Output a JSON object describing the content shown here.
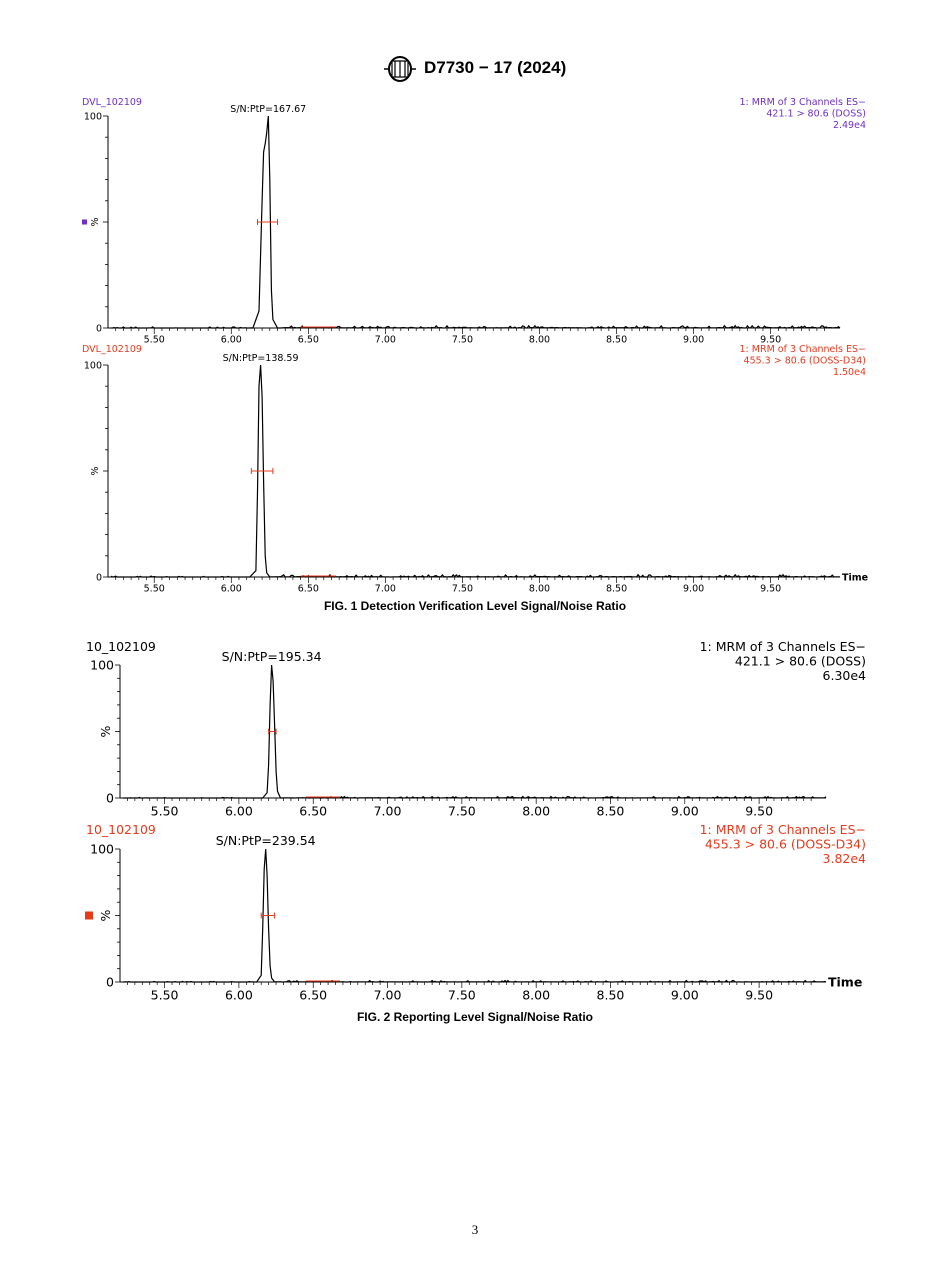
{
  "header": {
    "logo": "ASTM",
    "designation": "D7730 − 17 (2024)"
  },
  "colors": {
    "purple": "#7030c8",
    "red": "#e8391d",
    "black": "#000000"
  },
  "figures": [
    {
      "caption": "FIG. 1 Detection Verification Level Signal/Noise Ratio"
    },
    {
      "caption": "FIG. 2 Reporting Level Signal/Noise Ratio"
    }
  ],
  "page_number": "3",
  "chart_data": [
    {
      "type": "line",
      "sample": "DVL_102109",
      "channel": [
        "1: MRM of 3 Channels ES−",
        "421.1 > 80.6 (DOSS)",
        "2.49e4"
      ],
      "channel_color": "#7030c8",
      "annotation": "S/N:PtP=167.67",
      "ylabel": "%",
      "yticks": [
        "100",
        "0"
      ],
      "xlabel": "",
      "xticks": [
        "5.50",
        "6.00",
        "6.50",
        "7.00",
        "7.50",
        "8.00",
        "8.50",
        "9.00",
        "9.50"
      ],
      "xlim": [
        5.2,
        9.95
      ],
      "ylim": [
        0,
        100
      ],
      "marker_color": "#7030c8",
      "peak": {
        "x": [
          6.14,
          6.18,
          6.2,
          6.21,
          6.22,
          6.23,
          6.24,
          6.25,
          6.26,
          6.27,
          6.3
        ],
        "y": [
          0,
          8,
          60,
          83,
          87,
          92,
          100,
          70,
          18,
          4,
          0
        ]
      },
      "noise_bar": [
        6.17,
        6.3
      ]
    },
    {
      "type": "line",
      "sample": "DVL_102109",
      "channel": [
        "1: MRM of 3 Channels ES−",
        "455.3 > 80.6 (DOSS-D34)",
        "1.50e4"
      ],
      "channel_color": "#e8391d",
      "annotation": "S/N:PtP=138.59",
      "ylabel": "%",
      "yticks": [
        "100",
        "0"
      ],
      "xlabel": "Time",
      "xticks": [
        "5.50",
        "6.00",
        "6.50",
        "7.00",
        "7.50",
        "8.00",
        "8.50",
        "9.00",
        "9.50"
      ],
      "xlim": [
        5.2,
        9.95
      ],
      "ylim": [
        0,
        100
      ],
      "peak": {
        "x": [
          6.12,
          6.16,
          6.17,
          6.18,
          6.19,
          6.2,
          6.21,
          6.22,
          6.23,
          6.25
        ],
        "y": [
          0,
          3,
          40,
          90,
          100,
          85,
          45,
          10,
          2,
          0
        ]
      },
      "noise_bar": [
        6.13,
        6.27
      ]
    },
    {
      "type": "line",
      "sample": "10_102109",
      "channel": [
        "1: MRM of 3 Channels ES−",
        "421.1 > 80.6 (DOSS)",
        "6.30e4"
      ],
      "channel_color": "#000000",
      "annotation": "S/N:PtP=195.34",
      "ylabel": "%",
      "yticks": [
        "100",
        "0"
      ],
      "xlabel": "",
      "xticks": [
        "5.50",
        "6.00",
        "6.50",
        "7.00",
        "7.50",
        "8.00",
        "8.50",
        "9.00",
        "9.50"
      ],
      "xlim": [
        5.2,
        9.95
      ],
      "ylim": [
        0,
        100
      ],
      "peak": {
        "x": [
          6.16,
          6.19,
          6.2,
          6.21,
          6.22,
          6.23,
          6.24,
          6.25,
          6.26,
          6.28
        ],
        "y": [
          0,
          4,
          25,
          70,
          100,
          88,
          55,
          20,
          5,
          0
        ]
      },
      "noise_bar": [
        6.2,
        6.25
      ]
    },
    {
      "type": "line",
      "sample": "10_102109",
      "channel": [
        "1: MRM of 3 Channels ES−",
        "455.3 > 80.6 (DOSS-D34)",
        "3.82e4"
      ],
      "channel_color": "#e8391d",
      "annotation": "S/N:PtP=239.54",
      "ylabel": "%",
      "yticks": [
        "100",
        "0"
      ],
      "xlabel": "Time",
      "xticks": [
        "5.50",
        "6.00",
        "6.50",
        "7.00",
        "7.50",
        "8.00",
        "8.50",
        "9.00",
        "9.50"
      ],
      "xlim": [
        5.2,
        9.95
      ],
      "ylim": [
        0,
        100
      ],
      "marker_color": "#e8391d",
      "peak": {
        "x": [
          6.12,
          6.15,
          6.16,
          6.17,
          6.18,
          6.19,
          6.2,
          6.21,
          6.22,
          6.24
        ],
        "y": [
          0,
          5,
          40,
          85,
          100,
          80,
          40,
          12,
          3,
          0
        ]
      },
      "noise_bar": [
        6.15,
        6.24
      ]
    }
  ]
}
